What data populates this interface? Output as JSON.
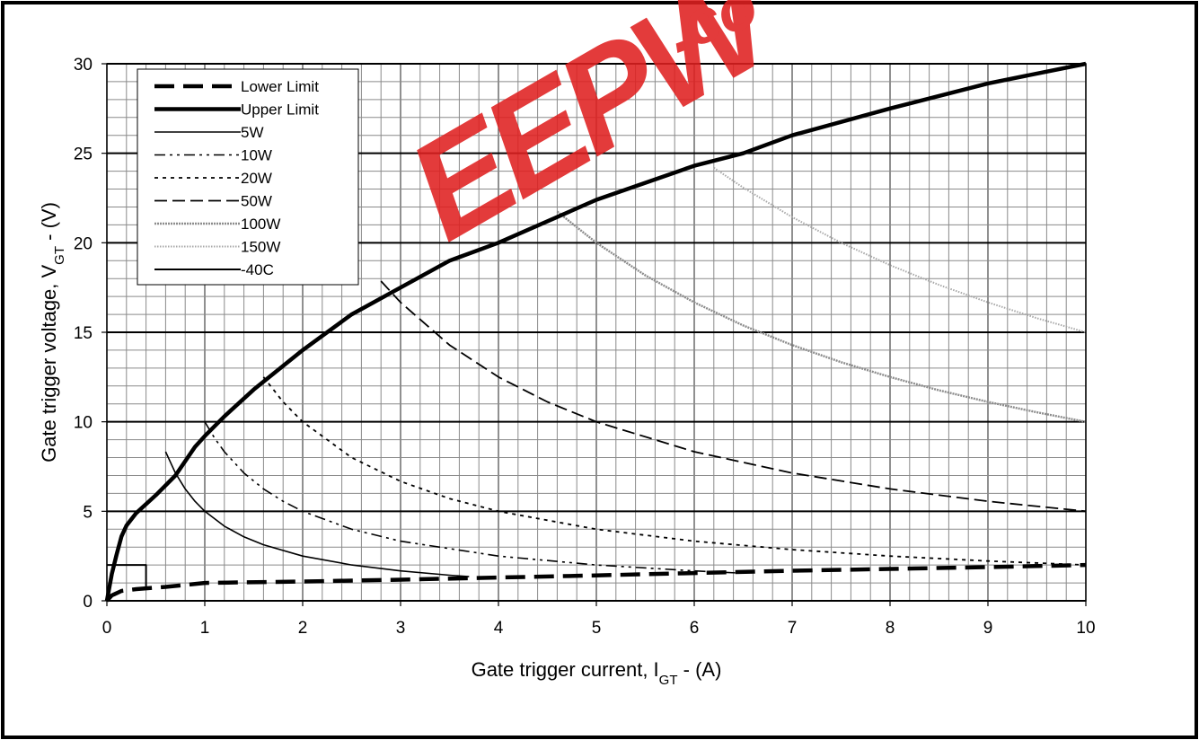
{
  "watermark": {
    "text": "EEPW",
    "suffix": ".co",
    "color": "#e02020"
  },
  "chart_data": {
    "type": "line",
    "title": "",
    "xlabel": {
      "main": "Gate trigger current,  I",
      "sub": "GT",
      "tail": " - (A)"
    },
    "ylabel": {
      "main": "Gate trigger voltage, V",
      "sub": "GT",
      "tail": " - (V)"
    },
    "xlim": [
      0,
      10
    ],
    "ylim": [
      0,
      30
    ],
    "x_ticks": [
      "0",
      "1",
      "2",
      "3",
      "4",
      "5",
      "6",
      "7",
      "8",
      "9",
      "10"
    ],
    "y_ticks": [
      "0",
      "5",
      "10",
      "15",
      "20",
      "25",
      "30"
    ],
    "grid": {
      "minor_x_step": 0.2,
      "minor_y_step": 1,
      "major_y_step": 5,
      "major_x_step": 1
    },
    "legend_position": "top-left",
    "series": [
      {
        "name": "Lower Limit",
        "style": "long-dash-thick",
        "points": [
          [
            0.0,
            0.0
          ],
          [
            0.05,
            0.3
          ],
          [
            0.15,
            0.55
          ],
          [
            0.3,
            0.65
          ],
          [
            0.6,
            0.78
          ],
          [
            1.0,
            1.0
          ],
          [
            2.0,
            1.08
          ],
          [
            3.0,
            1.18
          ],
          [
            4.0,
            1.3
          ],
          [
            5.0,
            1.42
          ],
          [
            6.0,
            1.55
          ],
          [
            7.0,
            1.68
          ],
          [
            8.0,
            1.78
          ],
          [
            9.0,
            1.88
          ],
          [
            10.0,
            2.0
          ]
        ]
      },
      {
        "name": "Upper Limit",
        "style": "solid-thick",
        "points": [
          [
            0.0,
            0.0
          ],
          [
            0.05,
            1.5
          ],
          [
            0.1,
            2.6
          ],
          [
            0.15,
            3.6
          ],
          [
            0.2,
            4.2
          ],
          [
            0.3,
            4.9
          ],
          [
            0.5,
            5.9
          ],
          [
            0.7,
            7.0
          ],
          [
            0.9,
            8.6
          ],
          [
            1.0,
            9.2
          ],
          [
            1.2,
            10.3
          ],
          [
            1.5,
            11.8
          ],
          [
            2.0,
            14.0
          ],
          [
            2.5,
            16.0
          ],
          [
            3.0,
            17.5
          ],
          [
            3.5,
            19.0
          ],
          [
            4.0,
            20.0
          ],
          [
            5.0,
            22.4
          ],
          [
            6.0,
            24.3
          ],
          [
            6.5,
            25.0
          ],
          [
            7.0,
            26.0
          ],
          [
            8.0,
            27.5
          ],
          [
            9.0,
            28.9
          ],
          [
            10.0,
            30.0
          ]
        ]
      },
      {
        "name": "5W",
        "style": "solid-thin",
        "points": [
          [
            0.6,
            8.33
          ],
          [
            0.7,
            7.14
          ],
          [
            0.8,
            6.25
          ],
          [
            0.9,
            5.56
          ],
          [
            1.0,
            5.0
          ],
          [
            1.2,
            4.17
          ],
          [
            1.4,
            3.57
          ],
          [
            1.6,
            3.13
          ],
          [
            2.0,
            2.5
          ],
          [
            2.5,
            2.0
          ],
          [
            3.0,
            1.67
          ],
          [
            3.5,
            1.43
          ],
          [
            3.7,
            1.35
          ]
        ]
      },
      {
        "name": "10W",
        "style": "dash-dot-dot",
        "points": [
          [
            1.0,
            10.0
          ],
          [
            1.1,
            9.09
          ],
          [
            1.2,
            8.33
          ],
          [
            1.4,
            7.14
          ],
          [
            1.6,
            6.25
          ],
          [
            1.8,
            5.56
          ],
          [
            2.0,
            5.0
          ],
          [
            2.5,
            4.0
          ],
          [
            3.0,
            3.33
          ],
          [
            4.0,
            2.5
          ],
          [
            5.0,
            2.0
          ],
          [
            6.0,
            1.67
          ],
          [
            6.5,
            1.54
          ]
        ]
      },
      {
        "name": "20W",
        "style": "dotted",
        "points": [
          [
            1.6,
            12.5
          ],
          [
            1.8,
            11.11
          ],
          [
            2.0,
            10.0
          ],
          [
            2.5,
            8.0
          ],
          [
            3.0,
            6.67
          ],
          [
            3.5,
            5.71
          ],
          [
            4.0,
            5.0
          ],
          [
            5.0,
            4.0
          ],
          [
            6.0,
            3.33
          ],
          [
            7.0,
            2.86
          ],
          [
            8.0,
            2.5
          ],
          [
            9.0,
            2.22
          ],
          [
            10.0,
            2.0
          ]
        ]
      },
      {
        "name": "50W",
        "style": "long-dash",
        "points": [
          [
            2.8,
            17.86
          ],
          [
            3.0,
            16.67
          ],
          [
            3.5,
            14.29
          ],
          [
            4.0,
            12.5
          ],
          [
            4.5,
            11.11
          ],
          [
            5.0,
            10.0
          ],
          [
            6.0,
            8.33
          ],
          [
            7.0,
            7.14
          ],
          [
            8.0,
            6.25
          ],
          [
            9.0,
            5.56
          ],
          [
            10.0,
            5.0
          ]
        ]
      },
      {
        "name": "100W",
        "style": "gray-fine",
        "points": [
          [
            4.6,
            21.74
          ],
          [
            5.0,
            20.0
          ],
          [
            5.5,
            18.18
          ],
          [
            6.0,
            16.67
          ],
          [
            6.5,
            15.38
          ],
          [
            7.0,
            14.29
          ],
          [
            7.5,
            13.33
          ],
          [
            8.0,
            12.5
          ],
          [
            8.5,
            11.76
          ],
          [
            9.0,
            11.11
          ],
          [
            9.5,
            10.53
          ],
          [
            10.0,
            10.0
          ]
        ]
      },
      {
        "name": "150W",
        "style": "gray-light",
        "points": [
          [
            6.2,
            24.19
          ],
          [
            6.5,
            23.08
          ],
          [
            7.0,
            21.43
          ],
          [
            7.5,
            20.0
          ],
          [
            8.0,
            18.75
          ],
          [
            8.5,
            17.65
          ],
          [
            9.0,
            16.67
          ],
          [
            9.5,
            15.79
          ],
          [
            10.0,
            15.0
          ]
        ]
      },
      {
        "name": "-40C",
        "style": "solid-box",
        "points": [
          [
            0.0,
            2.0
          ],
          [
            0.4,
            2.0
          ],
          [
            0.4,
            0.7
          ]
        ]
      }
    ]
  }
}
